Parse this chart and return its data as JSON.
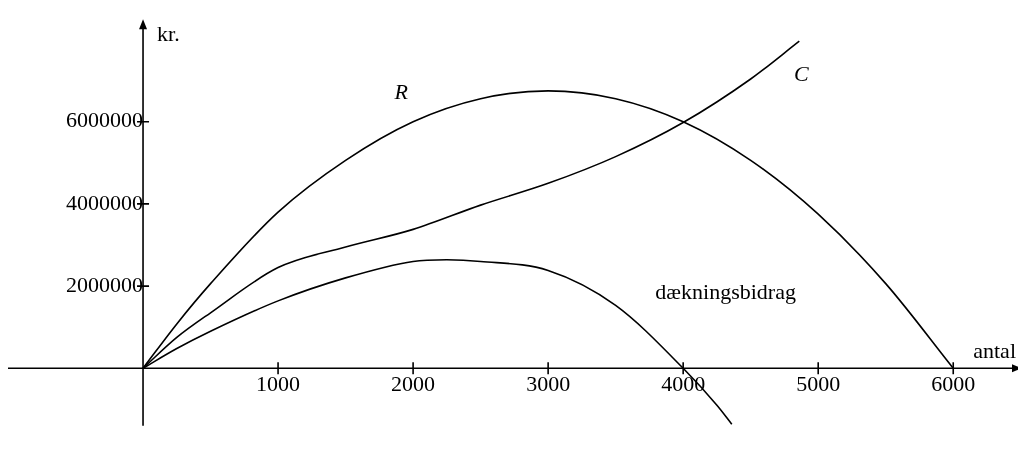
{
  "chart_data": {
    "type": "line",
    "xlabel": "antal",
    "ylabel": "kr.",
    "xlim": [
      -1000,
      6450
    ],
    "ylim": [
      -1400000,
      8300000
    ],
    "xticks": [
      1000,
      2000,
      3000,
      4000,
      5000,
      6000
    ],
    "yticks": [
      2000000,
      4000000,
      6000000
    ],
    "grid": false,
    "legend": false,
    "marker": "none",
    "line_style": "solid",
    "series": [
      {
        "name": "R",
        "color": "#000000",
        "x": [
          0,
          250,
          500,
          1000,
          1500,
          2000,
          2500,
          3000,
          3500,
          4000,
          4500,
          5000,
          5500,
          6000
        ],
        "values": [
          0,
          1080000,
          2060000,
          3800000,
          5060000,
          6000000,
          6560000,
          6750000,
          6560000,
          6000000,
          5060000,
          3750000,
          2060000,
          0
        ]
      },
      {
        "name": "C",
        "color": "#000000",
        "x": [
          0,
          250,
          500,
          1000,
          1500,
          2000,
          2500,
          3000,
          3500,
          4000,
          4500,
          4860
        ],
        "values": [
          0,
          750000,
          1350000,
          2450000,
          2950000,
          3380000,
          3970000,
          4500000,
          5150000,
          5980000,
          7040000,
          7960000
        ]
      },
      {
        "name": "dækningsbidrag",
        "color": "#000000",
        "x": [
          0,
          250,
          500,
          1000,
          1500,
          2000,
          2250,
          2500,
          3000,
          3500,
          4000,
          4250,
          4360
        ],
        "values": [
          0,
          480000,
          900000,
          1640000,
          2200000,
          2600000,
          2640000,
          2600000,
          2380000,
          1530000,
          0,
          -900000,
          -1360000
        ]
      }
    ]
  }
}
